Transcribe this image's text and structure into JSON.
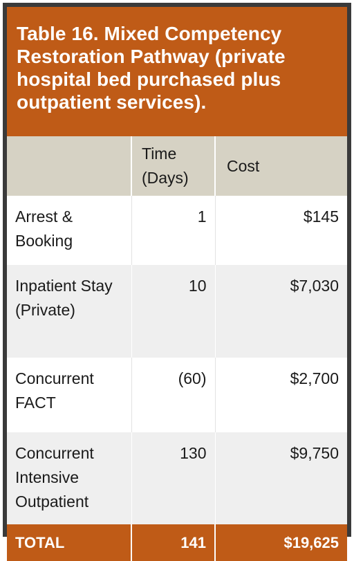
{
  "title": "Table 16. Mixed Competency Restoration Pathway (private hospital bed purchased plus outpatient services).",
  "columns": {
    "label": "",
    "time": "Time (Days)",
    "cost": "Cost"
  },
  "rows": [
    {
      "label": "Arrest & Booking",
      "time": "1",
      "cost": "$145"
    },
    {
      "label": "Inpatient Stay (Private)",
      "time": "10",
      "cost": "$7,030"
    },
    {
      "label": "Concurrent FACT",
      "time": "(60)",
      "cost": "$2,700"
    },
    {
      "label": "Concurrent Intensive Outpatient",
      "time": "130",
      "cost": "$9,750"
    }
  ],
  "total": {
    "label": "TOTAL",
    "time": "141",
    "cost": "$19,625"
  },
  "colors": {
    "accent": "#bf5b17",
    "header_bg": "#d6d2c4",
    "stripe": "#efefef",
    "frame": "#3a3a3a"
  }
}
